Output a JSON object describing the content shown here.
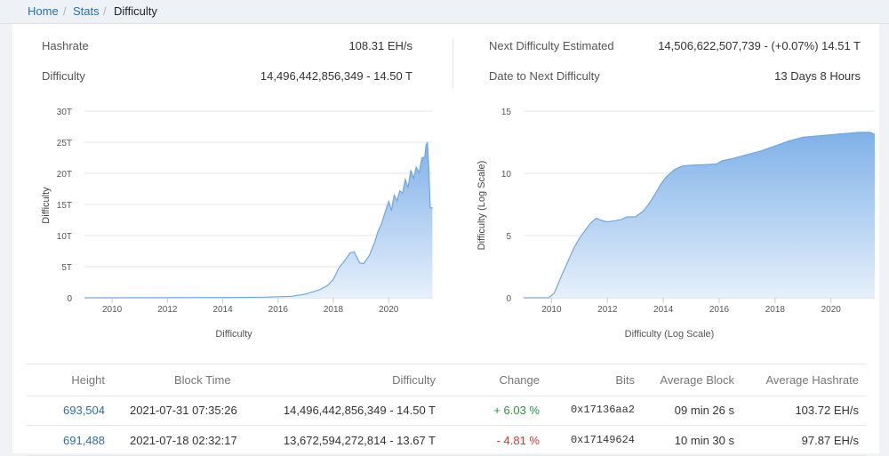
{
  "breadcrumb": {
    "home": "Home",
    "stats": "Stats",
    "current": "Difficulty"
  },
  "stats": {
    "hashrate_label": "Hashrate",
    "hashrate_value": "108.31 EH/s",
    "difficulty_label": "Difficulty",
    "difficulty_value": "14,496,442,856,349 - 14.50 T",
    "next_label": "Next Difficulty Estimated",
    "next_value": "14,506,622,507,739 - (+0.07%) 14.51 T",
    "date_label": "Date to Next Difficulty",
    "date_value": "13 Days 8 Hours"
  },
  "chart_data": [
    {
      "type": "area",
      "xlabel": "Difficulty",
      "ylabel": "Difficulty",
      "x_ticks": [
        "2010",
        "2012",
        "2014",
        "2016",
        "2018",
        "2020"
      ],
      "y_ticks": [
        "0",
        "5T",
        "10T",
        "15T",
        "20T",
        "25T",
        "30T"
      ],
      "xlim": [
        2009.0,
        2021.6
      ],
      "ylim": [
        0,
        30
      ],
      "y_unit": "T",
      "x": [
        2009.0,
        2012.0,
        2014.0,
        2015.5,
        2016.5,
        2017.0,
        2017.5,
        2017.8,
        2018.0,
        2018.2,
        2018.4,
        2018.6,
        2018.75,
        2018.85,
        2018.95,
        2019.1,
        2019.3,
        2019.5,
        2019.6,
        2019.75,
        2019.85,
        2020.0,
        2020.1,
        2020.2,
        2020.3,
        2020.4,
        2020.5,
        2020.6,
        2020.7,
        2020.8,
        2020.9,
        2021.0,
        2021.1,
        2021.2,
        2021.3,
        2021.35,
        2021.4,
        2021.45,
        2021.5,
        2021.58
      ],
      "values": [
        0,
        0.01,
        0.05,
        0.1,
        0.25,
        0.6,
        1.3,
        2.0,
        3.0,
        4.8,
        5.9,
        7.2,
        7.4,
        6.5,
        5.6,
        5.5,
        6.8,
        9.0,
        10.5,
        12.0,
        13.5,
        15.5,
        14.0,
        16.5,
        15.6,
        17.2,
        16.8,
        19.0,
        17.7,
        20.5,
        19.2,
        21.0,
        20.1,
        22.5,
        22.6,
        24.5,
        25.0,
        21.0,
        14.4,
        14.5
      ]
    },
    {
      "type": "area",
      "xlabel": "Difficulty (Log Scale)",
      "ylabel": "Difficulty (Log Scale)",
      "x_ticks": [
        "2010",
        "2012",
        "2014",
        "2016",
        "2018",
        "2020"
      ],
      "y_ticks": [
        "0",
        "5",
        "10",
        "15"
      ],
      "xlim": [
        2009.0,
        2021.6
      ],
      "ylim": [
        0,
        15
      ],
      "x": [
        2009.0,
        2009.9,
        2010.1,
        2010.25,
        2010.4,
        2010.6,
        2010.8,
        2011.0,
        2011.2,
        2011.4,
        2011.6,
        2011.8,
        2012.0,
        2012.3,
        2012.5,
        2012.7,
        2013.0,
        2013.3,
        2013.5,
        2013.7,
        2013.9,
        2014.1,
        2014.4,
        2014.7,
        2015.0,
        2015.5,
        2015.9,
        2016.1,
        2016.5,
        2017.0,
        2017.5,
        2018.0,
        2018.5,
        2019.0,
        2019.5,
        2020.0,
        2020.5,
        2021.0,
        2021.4,
        2021.58
      ],
      "values": [
        0,
        0,
        0.4,
        1.2,
        2.0,
        3.0,
        4.0,
        4.8,
        5.4,
        6.0,
        6.4,
        6.2,
        6.1,
        6.2,
        6.3,
        6.5,
        6.5,
        7.0,
        7.6,
        8.3,
        9.1,
        9.7,
        10.3,
        10.6,
        10.65,
        10.7,
        10.75,
        11.0,
        11.2,
        11.5,
        11.8,
        12.2,
        12.6,
        12.9,
        13.0,
        13.1,
        13.2,
        13.3,
        13.3,
        13.1
      ]
    }
  ],
  "table": {
    "headers": [
      "Height",
      "Block Time",
      "Difficulty",
      "Change",
      "Bits",
      "Average Block",
      "Average Hashrate"
    ],
    "rows": [
      [
        "693,504",
        "2021-07-31 07:35:26",
        "14,496,442,856,349 - 14.50 T",
        "+ 6.03 %",
        "0x17136aa2",
        "09 min 26 s",
        "103.72 EH/s"
      ],
      [
        "691,488",
        "2021-07-18 02:32:17",
        "13,672,594,272,814 - 13.67 T",
        "- 4.81 %",
        "0x17149624",
        "10 min 30 s",
        "97.87 EH/s"
      ]
    ]
  },
  "colors": {
    "fill_top": "#7fb1e8",
    "fill_bottom": "#e6f0fb",
    "stroke": "#6fa6e2",
    "grid": "#e3e6ea"
  }
}
